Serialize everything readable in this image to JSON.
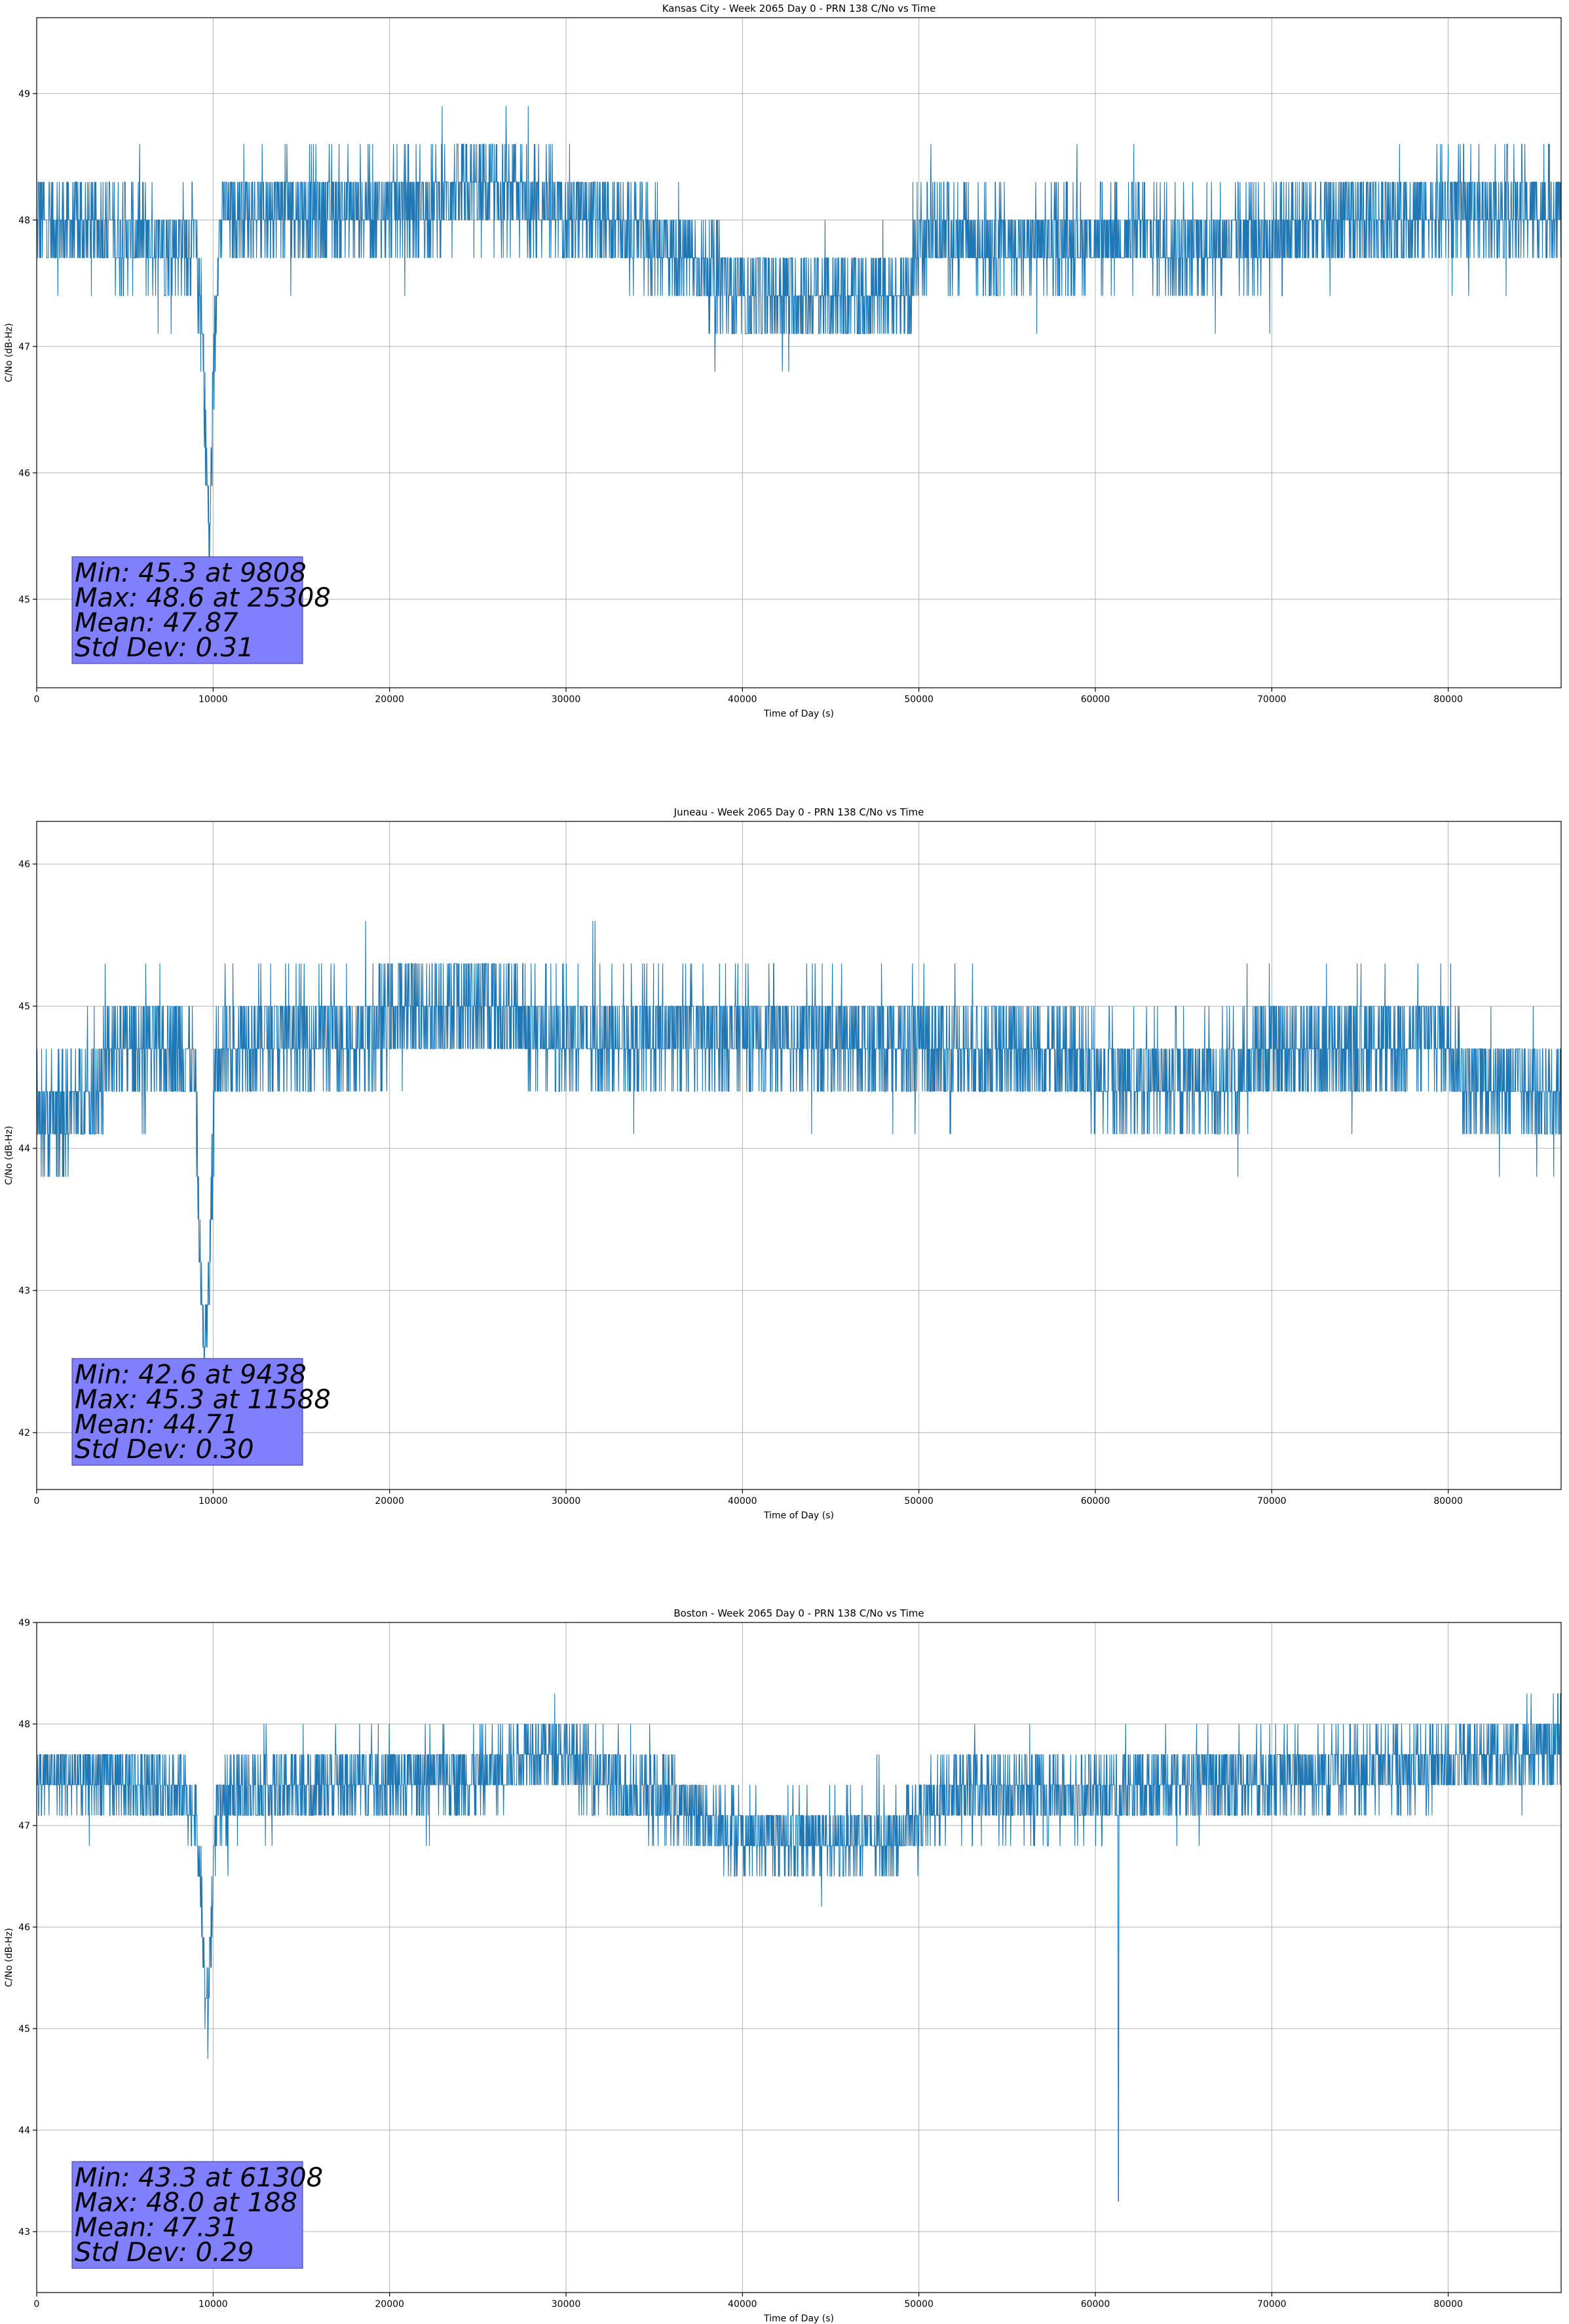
{
  "chart_data": [
    {
      "type": "line",
      "title": "Kansas City - Week 2065 Day 0 - PRN 138 C/No vs Time",
      "xlabel": "Time of Day (s)",
      "ylabel": "C/No (dB-Hz)",
      "xlim": [
        0,
        86400
      ],
      "ylim": [
        44.3,
        49.6
      ],
      "xticks": [
        0,
        10000,
        20000,
        30000,
        40000,
        50000,
        60000,
        70000,
        80000
      ],
      "yticks": [
        45,
        46,
        47,
        48,
        49
      ],
      "grid": true,
      "series_color": "#1f77b4",
      "baseline": [
        [
          0,
          48.0
        ],
        [
          9000,
          47.8
        ],
        [
          9300,
          47.3
        ],
        [
          9500,
          46.6
        ],
        [
          9700,
          45.8
        ],
        [
          9800,
          45.3
        ],
        [
          9900,
          46.1
        ],
        [
          10100,
          47.1
        ],
        [
          10300,
          47.9
        ],
        [
          10600,
          48.1
        ],
        [
          20000,
          48.1
        ],
        [
          25000,
          48.2
        ],
        [
          30000,
          48.1
        ],
        [
          33000,
          47.9
        ],
        [
          36000,
          47.8
        ],
        [
          38000,
          47.6
        ],
        [
          40000,
          47.4
        ],
        [
          45000,
          47.4
        ],
        [
          49500,
          47.4
        ],
        [
          50000,
          47.9
        ],
        [
          56000,
          47.8
        ],
        [
          62000,
          47.9
        ],
        [
          66000,
          47.8
        ],
        [
          70000,
          47.9
        ],
        [
          75000,
          48.0
        ],
        [
          80000,
          48.1
        ],
        [
          86400,
          48.1
        ]
      ],
      "stats": {
        "min": "Min: 45.3 at 9808",
        "max": "Max: 48.6 at 25308",
        "mean": "Mean: 47.87",
        "std": "Std Dev: 0.31"
      }
    },
    {
      "type": "line",
      "title": "Juneau - Week 2065 Day 0 - PRN 138 C/No vs Time",
      "xlabel": "Time of Day (s)",
      "ylabel": "C/No (dB-Hz)",
      "xlim": [
        0,
        86400
      ],
      "ylim": [
        41.6,
        46.3
      ],
      "xticks": [
        0,
        10000,
        20000,
        30000,
        40000,
        50000,
        60000,
        70000,
        80000
      ],
      "yticks": [
        42,
        43,
        44,
        45,
        46
      ],
      "grid": true,
      "series_color": "#1f77b4",
      "baseline": [
        [
          0,
          44.2
        ],
        [
          2500,
          44.3
        ],
        [
          3500,
          44.5
        ],
        [
          4500,
          44.7
        ],
        [
          8500,
          44.7
        ],
        [
          9000,
          44.5
        ],
        [
          9200,
          43.5
        ],
        [
          9438,
          42.6
        ],
        [
          9700,
          42.8
        ],
        [
          9900,
          43.6
        ],
        [
          10100,
          44.5
        ],
        [
          10400,
          44.8
        ],
        [
          19000,
          44.8
        ],
        [
          21000,
          45.0
        ],
        [
          26000,
          45.0
        ],
        [
          27000,
          44.9
        ],
        [
          30000,
          44.8
        ],
        [
          36000,
          44.8
        ],
        [
          45000,
          44.8
        ],
        [
          51000,
          44.7
        ],
        [
          55000,
          44.7
        ],
        [
          59000,
          44.7
        ],
        [
          60000,
          44.5
        ],
        [
          68000,
          44.5
        ],
        [
          70000,
          44.7
        ],
        [
          80000,
          44.8
        ],
        [
          81000,
          44.5
        ],
        [
          86400,
          44.4
        ]
      ],
      "stats": {
        "min": "Min: 42.6 at 9438",
        "max": "Max: 45.3 at 11588",
        "mean": "Mean: 44.71",
        "std": "Std Dev: 0.30"
      }
    },
    {
      "type": "line",
      "title": "Boston - Week 2065 Day 0 - PRN 138 C/No vs Time",
      "xlabel": "Time of Day (s)",
      "ylabel": "C/No (dB-Hz)",
      "xlim": [
        0,
        86400
      ],
      "ylim": [
        42.4,
        49.0
      ],
      "xticks": [
        0,
        10000,
        20000,
        30000,
        40000,
        50000,
        60000,
        70000,
        80000
      ],
      "yticks": [
        43,
        44,
        45,
        46,
        47,
        48,
        49
      ],
      "grid": true,
      "series_color": "#1f77b4",
      "baseline": [
        [
          0,
          47.5
        ],
        [
          7500,
          47.4
        ],
        [
          9000,
          47.2
        ],
        [
          9300,
          46.4
        ],
        [
          9500,
          45.5
        ],
        [
          9700,
          45.1
        ],
        [
          9900,
          46.2
        ],
        [
          10200,
          47.1
        ],
        [
          11000,
          47.3
        ],
        [
          15000,
          47.4
        ],
        [
          25000,
          47.5
        ],
        [
          27000,
          47.6
        ],
        [
          28000,
          47.8
        ],
        [
          31000,
          47.6
        ],
        [
          33000,
          47.4
        ],
        [
          35000,
          47.3
        ],
        [
          38000,
          47.1
        ],
        [
          40000,
          46.9
        ],
        [
          45000,
          46.9
        ],
        [
          49000,
          46.9
        ],
        [
          49500,
          47.1
        ],
        [
          52000,
          47.3
        ],
        [
          57000,
          47.3
        ],
        [
          61000,
          47.3
        ],
        [
          62000,
          47.4
        ],
        [
          70000,
          47.5
        ],
        [
          80000,
          47.6
        ],
        [
          83000,
          47.7
        ],
        [
          86400,
          47.8
        ]
      ],
      "spike": {
        "x": 61308,
        "y": 43.3
      },
      "stats": {
        "min": "Min: 43.3 at 61308",
        "max": "Max: 48.0 at 188",
        "mean": "Mean: 47.31",
        "std": "Std Dev: 0.29"
      }
    }
  ]
}
